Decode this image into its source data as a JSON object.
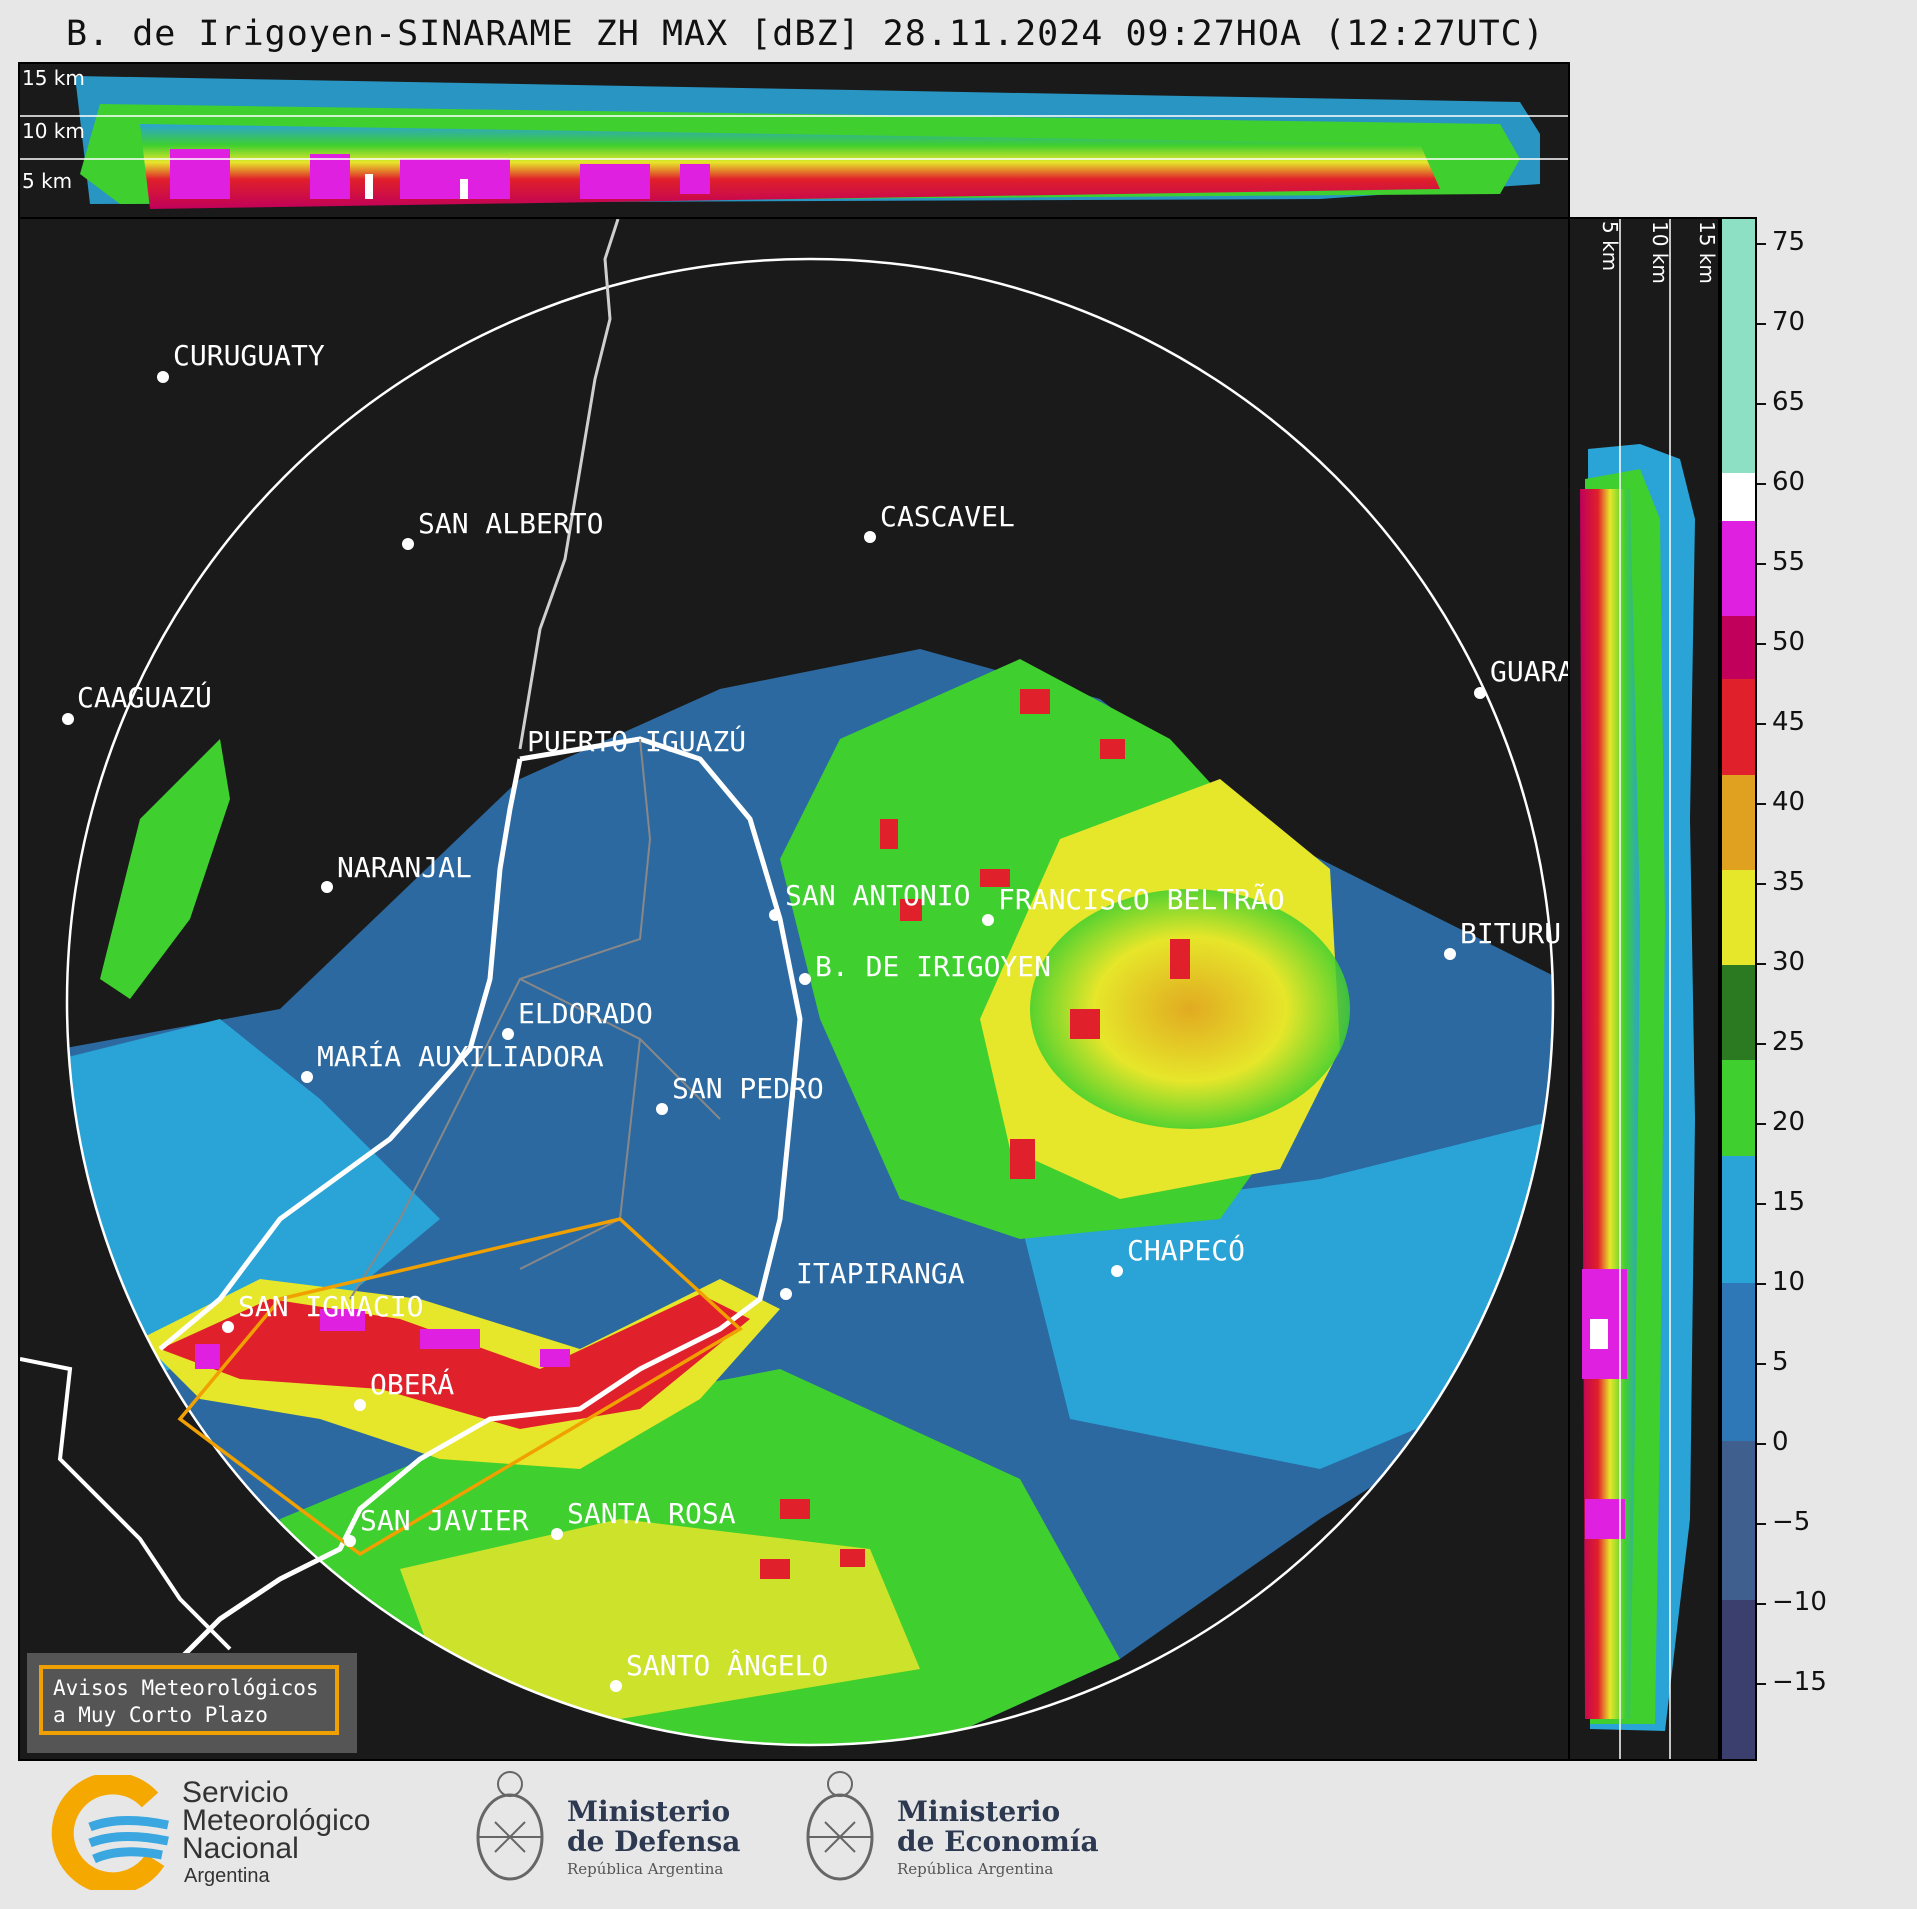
{
  "title": "B. de Irigoyen-SINARAME ZH MAX [dBZ] 28.11.2024 09:27HOA (12:27UTC)",
  "top_panel": {
    "heights": [
      "15 km",
      "10 km",
      "5 km"
    ]
  },
  "side_panel": {
    "heights": [
      "5 km",
      "10 km",
      "15 km"
    ]
  },
  "colorbar": {
    "ticks": [
      "75",
      "70",
      "65",
      "60",
      "55",
      "50",
      "45",
      "40",
      "35",
      "30",
      "25",
      "20",
      "15",
      "10",
      "5",
      "0",
      "−5",
      "−10",
      "−15"
    ],
    "bands": [
      {
        "from": -20,
        "to": -10,
        "color": "#3a3f6e"
      },
      {
        "from": -10,
        "to": 0,
        "color": "#3f5f8f"
      },
      {
        "from": 0,
        "to": 10,
        "color": "#2f78b8"
      },
      {
        "from": 10,
        "to": 18,
        "color": "#2aa3d6"
      },
      {
        "from": 18,
        "to": 24,
        "color": "#3fcf2f"
      },
      {
        "from": 24,
        "to": 30,
        "color": "#2b7a22"
      },
      {
        "from": 30,
        "to": 36,
        "color": "#e6e62a"
      },
      {
        "from": 36,
        "to": 42,
        "color": "#e0a020"
      },
      {
        "from": 42,
        "to": 48,
        "color": "#e0202a"
      },
      {
        "from": 48,
        "to": 52,
        "color": "#c0005a"
      },
      {
        "from": 52,
        "to": 58,
        "color": "#e020e0"
      },
      {
        "from": 58,
        "to": 61,
        "color": "#ffffff"
      },
      {
        "from": 61,
        "to": 77,
        "color": "#8ee0c4"
      }
    ]
  },
  "cities": [
    {
      "name": "CURUGUATY"
    },
    {
      "name": "SAN ALBERTO"
    },
    {
      "name": "CAAGUAZÚ"
    },
    {
      "name": "PUERTO IGUAZÚ"
    },
    {
      "name": "CASCAVEL"
    },
    {
      "name": "GUARA"
    },
    {
      "name": "NARANJAL"
    },
    {
      "name": "SAN ANTONIO"
    },
    {
      "name": "FRANCISCO BELTRÃO"
    },
    {
      "name": "BITURU"
    },
    {
      "name": "B. DE IRIGOYEN"
    },
    {
      "name": "ELDORADO"
    },
    {
      "name": "MARÍA AUXILIADORA"
    },
    {
      "name": "SAN PEDRO"
    },
    {
      "name": "CHAPECÓ"
    },
    {
      "name": "ITAPIRANGA"
    },
    {
      "name": "SAN IGNACIO"
    },
    {
      "name": "OBERÁ"
    },
    {
      "name": "SAN JAVIER"
    },
    {
      "name": "SANTA ROSA"
    },
    {
      "name": "SANTO ÂNGELO"
    }
  ],
  "legend": {
    "line1": "Avisos Meteorológicos",
    "line2": "a Muy Corto Plazo"
  },
  "footer": {
    "smn": [
      "Servicio",
      "Meteorológico",
      "Nacional",
      "Argentina"
    ],
    "defensa": {
      "line1": "Ministerio",
      "line2": "de Defensa",
      "sub": "República Argentina"
    },
    "economia": {
      "line1": "Ministerio",
      "line2": "de Economía",
      "sub": "República Argentina"
    }
  },
  "colors": {
    "warning": "#f0a000",
    "background": "#1a1a1a"
  }
}
